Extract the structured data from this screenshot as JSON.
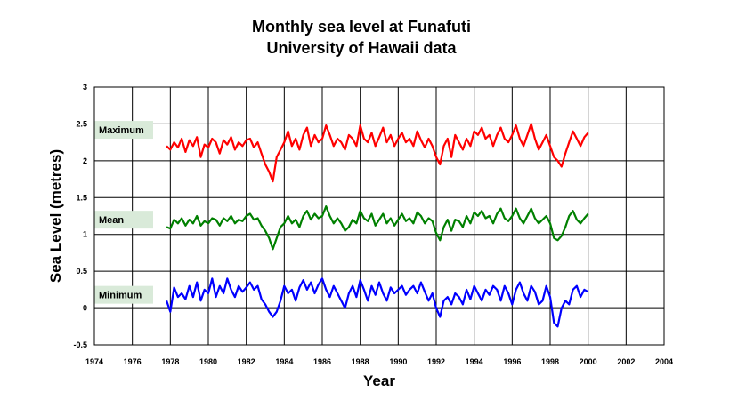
{
  "chart_data": {
    "type": "line",
    "title": [
      "Monthly sea level at Funafuti",
      "University of Hawaii data"
    ],
    "xlabel": "Year",
    "ylabel": "Sea Level (metres)",
    "xlim": [
      1974,
      2004
    ],
    "ylim": [
      -0.5,
      3
    ],
    "xticks": [
      "1974",
      "1976",
      "1978",
      "1980",
      "1982",
      "1984",
      "1986",
      "1988",
      "1990",
      "1992",
      "1994",
      "1996",
      "1998",
      "2000",
      "2002",
      "2004"
    ],
    "yticks": [
      "-0.5",
      "0",
      "0.5",
      "1",
      "1.5",
      "2",
      "2.5",
      "3"
    ],
    "grid": true,
    "series": [
      {
        "name": "Maximum",
        "color": "#ff0000",
        "label_y": 2.42,
        "x": [
          1977.8,
          1978.0,
          1978.2,
          1978.4,
          1978.6,
          1978.8,
          1979.0,
          1979.2,
          1979.4,
          1979.6,
          1979.8,
          1980.0,
          1980.2,
          1980.4,
          1980.6,
          1980.8,
          1981.0,
          1981.2,
          1981.4,
          1981.6,
          1981.8,
          1982.0,
          1982.2,
          1982.4,
          1982.6,
          1982.8,
          1983.0,
          1983.2,
          1983.4,
          1983.6,
          1983.8,
          1984.0,
          1984.2,
          1984.4,
          1984.6,
          1984.8,
          1985.0,
          1985.2,
          1985.4,
          1985.6,
          1985.8,
          1986.0,
          1986.2,
          1986.4,
          1986.6,
          1986.8,
          1987.0,
          1987.2,
          1987.4,
          1987.6,
          1987.8,
          1988.0,
          1988.2,
          1988.4,
          1988.6,
          1988.8,
          1989.0,
          1989.2,
          1989.4,
          1989.6,
          1989.8,
          1990.0,
          1990.2,
          1990.4,
          1990.6,
          1990.8,
          1991.0,
          1991.2,
          1991.4,
          1991.6,
          1991.8,
          1992.0,
          1992.2,
          1992.4,
          1992.6,
          1992.8,
          1993.0,
          1993.2,
          1993.4,
          1993.6,
          1993.8,
          1994.0,
          1994.2,
          1994.4,
          1994.6,
          1994.8,
          1995.0,
          1995.2,
          1995.4,
          1995.6,
          1995.8,
          1996.0,
          1996.2,
          1996.4,
          1996.6,
          1996.8,
          1997.0,
          1997.2,
          1997.4,
          1997.6,
          1997.8,
          1998.0,
          1998.2,
          1998.4,
          1998.6,
          1998.8,
          1999.0,
          1999.2,
          1999.4,
          1999.6,
          1999.8,
          2000.0
        ],
        "y": [
          2.2,
          2.15,
          2.25,
          2.18,
          2.3,
          2.12,
          2.28,
          2.2,
          2.32,
          2.05,
          2.22,
          2.18,
          2.3,
          2.25,
          2.1,
          2.28,
          2.22,
          2.32,
          2.15,
          2.25,
          2.2,
          2.28,
          2.3,
          2.18,
          2.25,
          2.1,
          1.95,
          1.85,
          1.72,
          2.05,
          2.15,
          2.25,
          2.4,
          2.2,
          2.3,
          2.15,
          2.35,
          2.45,
          2.2,
          2.35,
          2.25,
          2.3,
          2.48,
          2.35,
          2.2,
          2.3,
          2.25,
          2.15,
          2.35,
          2.3,
          2.2,
          2.48,
          2.3,
          2.25,
          2.38,
          2.2,
          2.32,
          2.45,
          2.25,
          2.35,
          2.2,
          2.3,
          2.38,
          2.25,
          2.3,
          2.2,
          2.4,
          2.28,
          2.18,
          2.3,
          2.2,
          2.05,
          1.95,
          2.2,
          2.3,
          2.05,
          2.35,
          2.25,
          2.15,
          2.3,
          2.2,
          2.4,
          2.35,
          2.45,
          2.3,
          2.35,
          2.2,
          2.35,
          2.45,
          2.3,
          2.25,
          2.35,
          2.48,
          2.3,
          2.2,
          2.35,
          2.5,
          2.3,
          2.15,
          2.25,
          2.35,
          2.2,
          2.05,
          2.0,
          1.92,
          2.1,
          2.25,
          2.4,
          2.3,
          2.2,
          2.32,
          2.38
        ]
      },
      {
        "name": "Mean",
        "color": "#008000",
        "label_y": 1.2,
        "x": [
          1977.8,
          1978.0,
          1978.2,
          1978.4,
          1978.6,
          1978.8,
          1979.0,
          1979.2,
          1979.4,
          1979.6,
          1979.8,
          1980.0,
          1980.2,
          1980.4,
          1980.6,
          1980.8,
          1981.0,
          1981.2,
          1981.4,
          1981.6,
          1981.8,
          1982.0,
          1982.2,
          1982.4,
          1982.6,
          1982.8,
          1983.0,
          1983.2,
          1983.4,
          1983.6,
          1983.8,
          1984.0,
          1984.2,
          1984.4,
          1984.6,
          1984.8,
          1985.0,
          1985.2,
          1985.4,
          1985.6,
          1985.8,
          1986.0,
          1986.2,
          1986.4,
          1986.6,
          1986.8,
          1987.0,
          1987.2,
          1987.4,
          1987.6,
          1987.8,
          1988.0,
          1988.2,
          1988.4,
          1988.6,
          1988.8,
          1989.0,
          1989.2,
          1989.4,
          1989.6,
          1989.8,
          1990.0,
          1990.2,
          1990.4,
          1990.6,
          1990.8,
          1991.0,
          1991.2,
          1991.4,
          1991.6,
          1991.8,
          1992.0,
          1992.2,
          1992.4,
          1992.6,
          1992.8,
          1993.0,
          1993.2,
          1993.4,
          1993.6,
          1993.8,
          1994.0,
          1994.2,
          1994.4,
          1994.6,
          1994.8,
          1995.0,
          1995.2,
          1995.4,
          1995.6,
          1995.8,
          1996.0,
          1996.2,
          1996.4,
          1996.6,
          1996.8,
          1997.0,
          1997.2,
          1997.4,
          1997.6,
          1997.8,
          1998.0,
          1998.2,
          1998.4,
          1998.6,
          1998.8,
          1999.0,
          1999.2,
          1999.4,
          1999.6,
          1999.8,
          2000.0
        ],
        "y": [
          1.1,
          1.08,
          1.2,
          1.15,
          1.22,
          1.12,
          1.2,
          1.15,
          1.25,
          1.12,
          1.18,
          1.15,
          1.22,
          1.2,
          1.12,
          1.22,
          1.18,
          1.25,
          1.15,
          1.2,
          1.18,
          1.25,
          1.28,
          1.2,
          1.22,
          1.12,
          1.05,
          0.95,
          0.8,
          0.95,
          1.1,
          1.15,
          1.25,
          1.15,
          1.2,
          1.1,
          1.25,
          1.32,
          1.2,
          1.28,
          1.22,
          1.25,
          1.38,
          1.25,
          1.15,
          1.22,
          1.15,
          1.05,
          1.1,
          1.2,
          1.15,
          1.32,
          1.22,
          1.18,
          1.28,
          1.12,
          1.2,
          1.28,
          1.15,
          1.22,
          1.12,
          1.2,
          1.28,
          1.18,
          1.22,
          1.15,
          1.3,
          1.25,
          1.15,
          1.22,
          1.18,
          1.02,
          0.92,
          1.1,
          1.2,
          1.05,
          1.2,
          1.18,
          1.1,
          1.25,
          1.15,
          1.3,
          1.25,
          1.32,
          1.22,
          1.25,
          1.15,
          1.28,
          1.35,
          1.22,
          1.18,
          1.25,
          1.35,
          1.22,
          1.15,
          1.25,
          1.35,
          1.22,
          1.15,
          1.2,
          1.25,
          1.15,
          0.95,
          0.92,
          0.98,
          1.1,
          1.25,
          1.32,
          1.2,
          1.15,
          1.22,
          1.28
        ]
      },
      {
        "name": "Minimum",
        "color": "#0000ff",
        "label_y": 0.18,
        "x": [
          1977.8,
          1978.0,
          1978.2,
          1978.4,
          1978.6,
          1978.8,
          1979.0,
          1979.2,
          1979.4,
          1979.6,
          1979.8,
          1980.0,
          1980.2,
          1980.4,
          1980.6,
          1980.8,
          1981.0,
          1981.2,
          1981.4,
          1981.6,
          1981.8,
          1982.0,
          1982.2,
          1982.4,
          1982.6,
          1982.8,
          1983.0,
          1983.2,
          1983.4,
          1983.6,
          1983.8,
          1984.0,
          1984.2,
          1984.4,
          1984.6,
          1984.8,
          1985.0,
          1985.2,
          1985.4,
          1985.6,
          1985.8,
          1986.0,
          1986.2,
          1986.4,
          1986.6,
          1986.8,
          1987.0,
          1987.2,
          1987.4,
          1987.6,
          1987.8,
          1988.0,
          1988.2,
          1988.4,
          1988.6,
          1988.8,
          1989.0,
          1989.2,
          1989.4,
          1989.6,
          1989.8,
          1990.0,
          1990.2,
          1990.4,
          1990.6,
          1990.8,
          1991.0,
          1991.2,
          1991.4,
          1991.6,
          1991.8,
          1992.0,
          1992.2,
          1992.4,
          1992.6,
          1992.8,
          1993.0,
          1993.2,
          1993.4,
          1993.6,
          1993.8,
          1994.0,
          1994.2,
          1994.4,
          1994.6,
          1994.8,
          1995.0,
          1995.2,
          1995.4,
          1995.6,
          1995.8,
          1996.0,
          1996.2,
          1996.4,
          1996.6,
          1996.8,
          1997.0,
          1997.2,
          1997.4,
          1997.6,
          1997.8,
          1998.0,
          1998.2,
          1998.4,
          1998.6,
          1998.8,
          1999.0,
          1999.2,
          1999.4,
          1999.6,
          1999.8,
          2000.0
        ],
        "y": [
          0.1,
          -0.05,
          0.28,
          0.15,
          0.2,
          0.12,
          0.3,
          0.15,
          0.35,
          0.1,
          0.25,
          0.2,
          0.4,
          0.15,
          0.3,
          0.2,
          0.4,
          0.25,
          0.15,
          0.3,
          0.22,
          0.28,
          0.35,
          0.25,
          0.3,
          0.12,
          0.05,
          -0.05,
          -0.12,
          -0.05,
          0.1,
          0.3,
          0.2,
          0.25,
          0.1,
          0.28,
          0.38,
          0.25,
          0.35,
          0.2,
          0.32,
          0.4,
          0.25,
          0.15,
          0.3,
          0.2,
          0.1,
          0.0,
          0.2,
          0.3,
          0.15,
          0.38,
          0.25,
          0.1,
          0.3,
          0.18,
          0.35,
          0.2,
          0.1,
          0.28,
          0.2,
          0.25,
          0.3,
          0.18,
          0.25,
          0.3,
          0.2,
          0.35,
          0.22,
          0.1,
          0.2,
          0.0,
          -0.12,
          0.1,
          0.15,
          0.05,
          0.2,
          0.15,
          0.05,
          0.25,
          0.12,
          0.3,
          0.2,
          0.1,
          0.25,
          0.18,
          0.3,
          0.25,
          0.1,
          0.3,
          0.2,
          0.05,
          0.25,
          0.35,
          0.2,
          0.1,
          0.3,
          0.22,
          0.05,
          0.1,
          0.3,
          0.15,
          -0.2,
          -0.25,
          0.0,
          0.1,
          0.05,
          0.25,
          0.3,
          0.15,
          0.25,
          0.22
        ]
      }
    ]
  }
}
